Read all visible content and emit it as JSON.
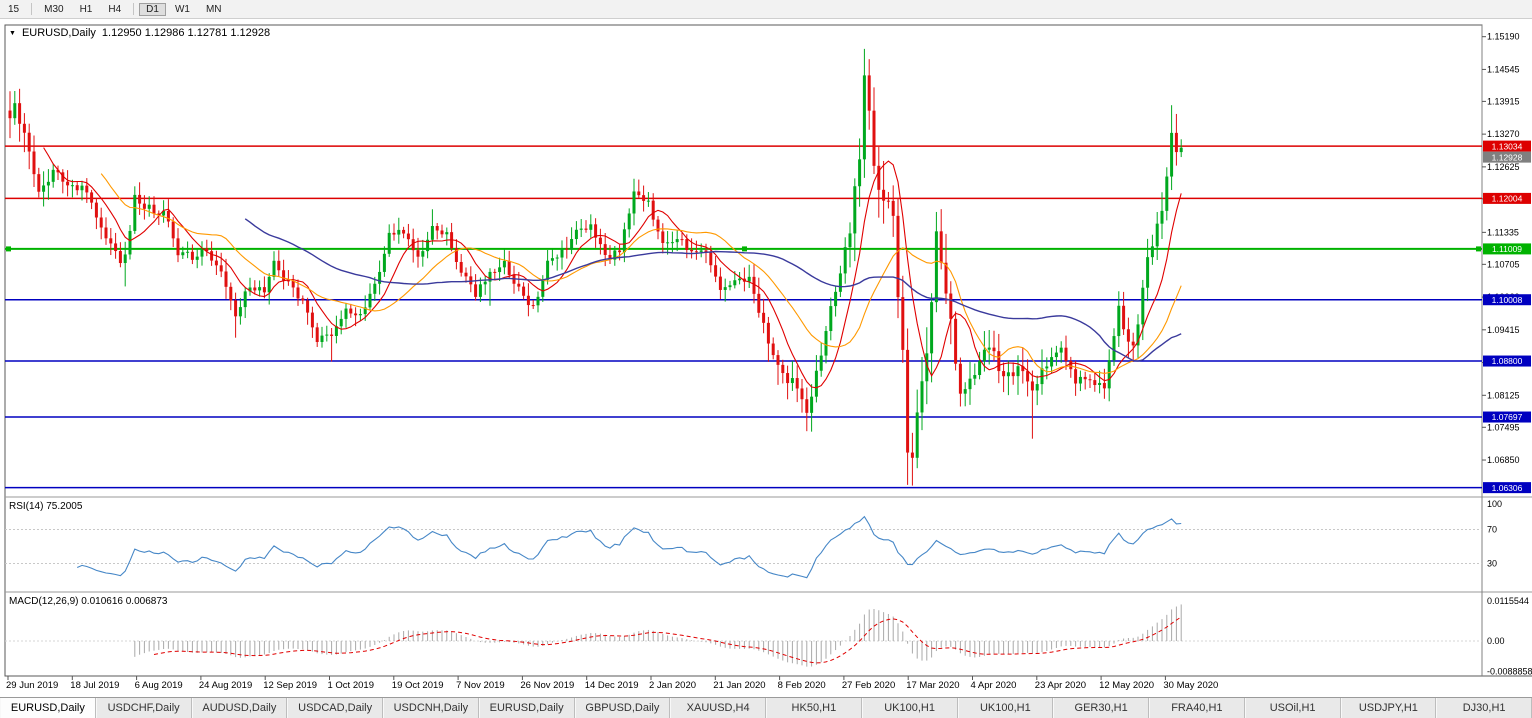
{
  "toolbar": {
    "timeframes": [
      {
        "label": "15",
        "active": false
      },
      {
        "label": "M30",
        "active": false
      },
      {
        "label": "H1",
        "active": false
      },
      {
        "label": "H4",
        "active": false
      },
      {
        "label": "D1",
        "active": true
      },
      {
        "label": "W1",
        "active": false
      },
      {
        "label": "MN",
        "active": false
      }
    ]
  },
  "chart": {
    "title": {
      "marker": "▼",
      "symbol": "EURUSD,Daily",
      "ohlc": "1.12950 1.12986 1.12781 1.12928"
    },
    "price_axis": {
      "ticks": [
        "1.15190",
        "1.14545",
        "1.13915",
        "1.13270",
        "1.12625",
        "1.11995",
        "1.11335",
        "1.10705",
        "1.10060",
        "1.09415",
        "1.08770",
        "1.08125",
        "1.07495",
        "1.06850"
      ]
    },
    "levels": [
      {
        "price": 1.13034,
        "label": "1.13034",
        "color": "#dd0000",
        "kind": "resistance-line",
        "selected": false
      },
      {
        "price": 1.12928,
        "label": "1.12928",
        "color": "#7f7f7f",
        "kind": "current-price",
        "selected": false
      },
      {
        "price": 1.12004,
        "label": "1.12004",
        "color": "#dd0000",
        "kind": "resistance-line",
        "selected": false
      },
      {
        "price": 1.11009,
        "label": "1.11009",
        "color": "#00b200",
        "kind": "support-line",
        "selected": true
      },
      {
        "price": 1.10008,
        "label": "1.10008",
        "color": "#0000c0",
        "kind": "support-line",
        "selected": false
      },
      {
        "price": 1.088,
        "label": "1.08800",
        "color": "#0000c0",
        "kind": "support-line",
        "selected": false
      },
      {
        "price": 1.07697,
        "label": "1.07697",
        "color": "#0000c0",
        "kind": "support-line",
        "selected": false
      },
      {
        "price": 1.06306,
        "label": "1.06306",
        "color": "#0000c0",
        "kind": "support-line",
        "selected": false
      }
    ],
    "x_axis": {
      "labels": [
        "29 Jun 2019",
        "18 Jul 2019",
        "6 Aug 2019",
        "24 Aug 2019",
        "12 Sep 2019",
        "1 Oct 2019",
        "19 Oct 2019",
        "7 Nov 2019",
        "26 Nov 2019",
        "14 Dec 2019",
        "2 Jan 2020",
        "21 Jan 2020",
        "8 Feb 2020",
        "27 Feb 2020",
        "17 Mar 2020",
        "4 Apr 2020",
        "23 Apr 2020",
        "12 May 2020",
        "30 May 2020"
      ]
    }
  },
  "chart_data": {
    "type": "candlestick",
    "symbol": "EURUSD",
    "timeframe": "Daily",
    "bars": 245,
    "current_ohlc": {
      "open": 1.1295,
      "high": 1.12986,
      "low": 1.12781,
      "close": 1.12928
    },
    "y_range": [
      1.0622,
      1.1542
    ],
    "x_range": [
      "29 Jun 2019",
      "5 Jun 2020"
    ],
    "up_color": "#00a81e",
    "down_color": "#e01010",
    "close_keyframes": [
      [
        0,
        1.1372
      ],
      [
        1,
        1.139
      ],
      [
        2,
        1.136
      ],
      [
        4,
        1.1285
      ],
      [
        6,
        1.1222
      ],
      [
        9,
        1.1253
      ],
      [
        13,
        1.1228
      ],
      [
        16,
        1.1212
      ],
      [
        19,
        1.1148
      ],
      [
        23,
        1.1078
      ],
      [
        24,
        1.1085
      ],
      [
        26,
        1.12
      ],
      [
        29,
        1.1182
      ],
      [
        32,
        1.1172
      ],
      [
        35,
        1.1095
      ],
      [
        38,
        1.1087
      ],
      [
        41,
        1.11
      ],
      [
        44,
        1.1058
      ],
      [
        47,
        1.0972
      ],
      [
        50,
        1.1028
      ],
      [
        53,
        1.1012
      ],
      [
        55,
        1.107
      ],
      [
        58,
        1.1032
      ],
      [
        61,
        1.0992
      ],
      [
        64,
        1.0922
      ],
      [
        67,
        1.0935
      ],
      [
        70,
        1.098
      ],
      [
        73,
        1.0972
      ],
      [
        76,
        1.103
      ],
      [
        79,
        1.1125
      ],
      [
        82,
        1.1132
      ],
      [
        85,
        1.1082
      ],
      [
        88,
        1.115
      ],
      [
        91,
        1.1128
      ],
      [
        94,
        1.1052
      ],
      [
        97,
        1.1012
      ],
      [
        100,
        1.1052
      ],
      [
        103,
        1.1075
      ],
      [
        106,
        1.1018
      ],
      [
        109,
        1.0982
      ],
      [
        112,
        1.1078
      ],
      [
        115,
        1.1093
      ],
      [
        118,
        1.113
      ],
      [
        121,
        1.115
      ],
      [
        124,
        1.108
      ],
      [
        127,
        1.1096
      ],
      [
        130,
        1.121
      ],
      [
        133,
        1.1196
      ],
      [
        136,
        1.1108
      ],
      [
        139,
        1.1128
      ],
      [
        142,
        1.1092
      ],
      [
        145,
        1.1093
      ],
      [
        148,
        1.102
      ],
      [
        151,
        1.1032
      ],
      [
        154,
        1.1044
      ],
      [
        157,
        1.0948
      ],
      [
        160,
        1.0875
      ],
      [
        163,
        1.0838
      ],
      [
        166,
        1.0788
      ],
      [
        169,
        1.088
      ],
      [
        172,
        1.1026
      ],
      [
        175,
        1.1135
      ],
      [
        177,
        1.1284
      ],
      [
        178,
        1.145
      ],
      [
        179,
        1.136
      ],
      [
        180,
        1.1282
      ],
      [
        182,
        1.1184
      ],
      [
        184,
        1.118
      ],
      [
        185,
        1.1
      ],
      [
        186,
        1.0916
      ],
      [
        187,
        1.0694
      ],
      [
        188,
        1.07
      ],
      [
        189,
        1.0768
      ],
      [
        191,
        1.0882
      ],
      [
        193,
        1.1138
      ],
      [
        195,
        1.1032
      ],
      [
        198,
        1.081
      ],
      [
        201,
        1.0858
      ],
      [
        204,
        1.0914
      ],
      [
        207,
        1.0842
      ],
      [
        210,
        1.0858
      ],
      [
        213,
        1.0824
      ],
      [
        216,
        1.0876
      ],
      [
        219,
        1.0908
      ],
      [
        222,
        1.0836
      ],
      [
        225,
        1.085
      ],
      [
        228,
        1.0822
      ],
      [
        231,
        1.098
      ],
      [
        234,
        1.0902
      ],
      [
        237,
        1.1076
      ],
      [
        240,
        1.1172
      ],
      [
        242,
        1.1338
      ],
      [
        243,
        1.1292
      ],
      [
        244,
        1.1293
      ]
    ],
    "extremes": [
      {
        "i": 1,
        "h": 1.1412
      },
      {
        "i": 24,
        "l": 1.1027
      },
      {
        "i": 47,
        "l": 1.0926
      },
      {
        "i": 67,
        "l": 1.0879
      },
      {
        "i": 88,
        "h": 1.1179
      },
      {
        "i": 100,
        "l": 1.0989
      },
      {
        "i": 130,
        "h": 1.1239
      },
      {
        "i": 166,
        "l": 1.0778
      },
      {
        "i": 178,
        "h": 1.1495
      },
      {
        "i": 187,
        "l": 1.0636
      },
      {
        "i": 193,
        "h": 1.1147
      },
      {
        "i": 213,
        "l": 1.0727
      },
      {
        "i": 242,
        "h": 1.1384
      }
    ],
    "vol_zones": [
      {
        "from": 0,
        "to": 8,
        "f": 1.6
      },
      {
        "from": 155,
        "to": 174,
        "f": 1.6
      },
      {
        "from": 175,
        "to": 196,
        "f": 2.4
      },
      {
        "from": 197,
        "to": 215,
        "f": 1.5
      },
      {
        "from": 228,
        "to": 244,
        "f": 1.5
      }
    ],
    "key_points": [
      {
        "date": "1 Jul 2019",
        "price": 1.1412
      },
      {
        "date": "1 Oct 2019",
        "price": 1.0879
      },
      {
        "date": "31 Dec 2019",
        "price": 1.1239
      },
      {
        "date": "20 Feb 2020",
        "price": 1.0778
      },
      {
        "date": "9 Mar 2020",
        "price": 1.1495
      },
      {
        "date": "20 Mar 2020",
        "price": 1.0636
      },
      {
        "date": "5 Jun 2020",
        "price": 1.1384
      }
    ],
    "moving_averages": [
      {
        "period": 8,
        "color": "#e00000"
      },
      {
        "period": 20,
        "color": "#ff9900"
      },
      {
        "period": 50,
        "color": "#3a3a9c"
      }
    ],
    "indicators": {
      "rsi": {
        "label": "RSI(14) 75.2005",
        "period": 14,
        "value": 75.2005,
        "levels": [
          "100",
          "70",
          "30"
        ],
        "color": "#4687c7"
      },
      "macd": {
        "label": "MACD(12,26,9) 0.010616 0.006873",
        "fast": 12,
        "slow": 26,
        "signal_period": 9,
        "main": 0.010616,
        "signal": 0.006873,
        "axis": [
          "0.0115544",
          "0.00",
          "-0.0088858"
        ],
        "hist_color": "#a9a9a9",
        "signal_color": "#e00000"
      }
    }
  },
  "tabs": [
    {
      "label": "EURUSD,Daily",
      "active": true
    },
    {
      "label": "USDCHF,Daily",
      "active": false
    },
    {
      "label": "AUDUSD,Daily",
      "active": false
    },
    {
      "label": "USDCAD,Daily",
      "active": false
    },
    {
      "label": "USDCNH,Daily",
      "active": false
    },
    {
      "label": "EURUSD,Daily",
      "active": false
    },
    {
      "label": "GBPUSD,Daily",
      "active": false
    },
    {
      "label": "XAUUSD,H4",
      "active": false
    },
    {
      "label": "HK50,H1",
      "active": false
    },
    {
      "label": "UK100,H1",
      "active": false
    },
    {
      "label": "UK100,H1",
      "active": false
    },
    {
      "label": "GER30,H1",
      "active": false
    },
    {
      "label": "FRA40,H1",
      "active": false
    },
    {
      "label": "USOil,H1",
      "active": false
    },
    {
      "label": "USDJPY,H1",
      "active": false
    },
    {
      "label": "DJ30,H1",
      "active": false
    }
  ]
}
